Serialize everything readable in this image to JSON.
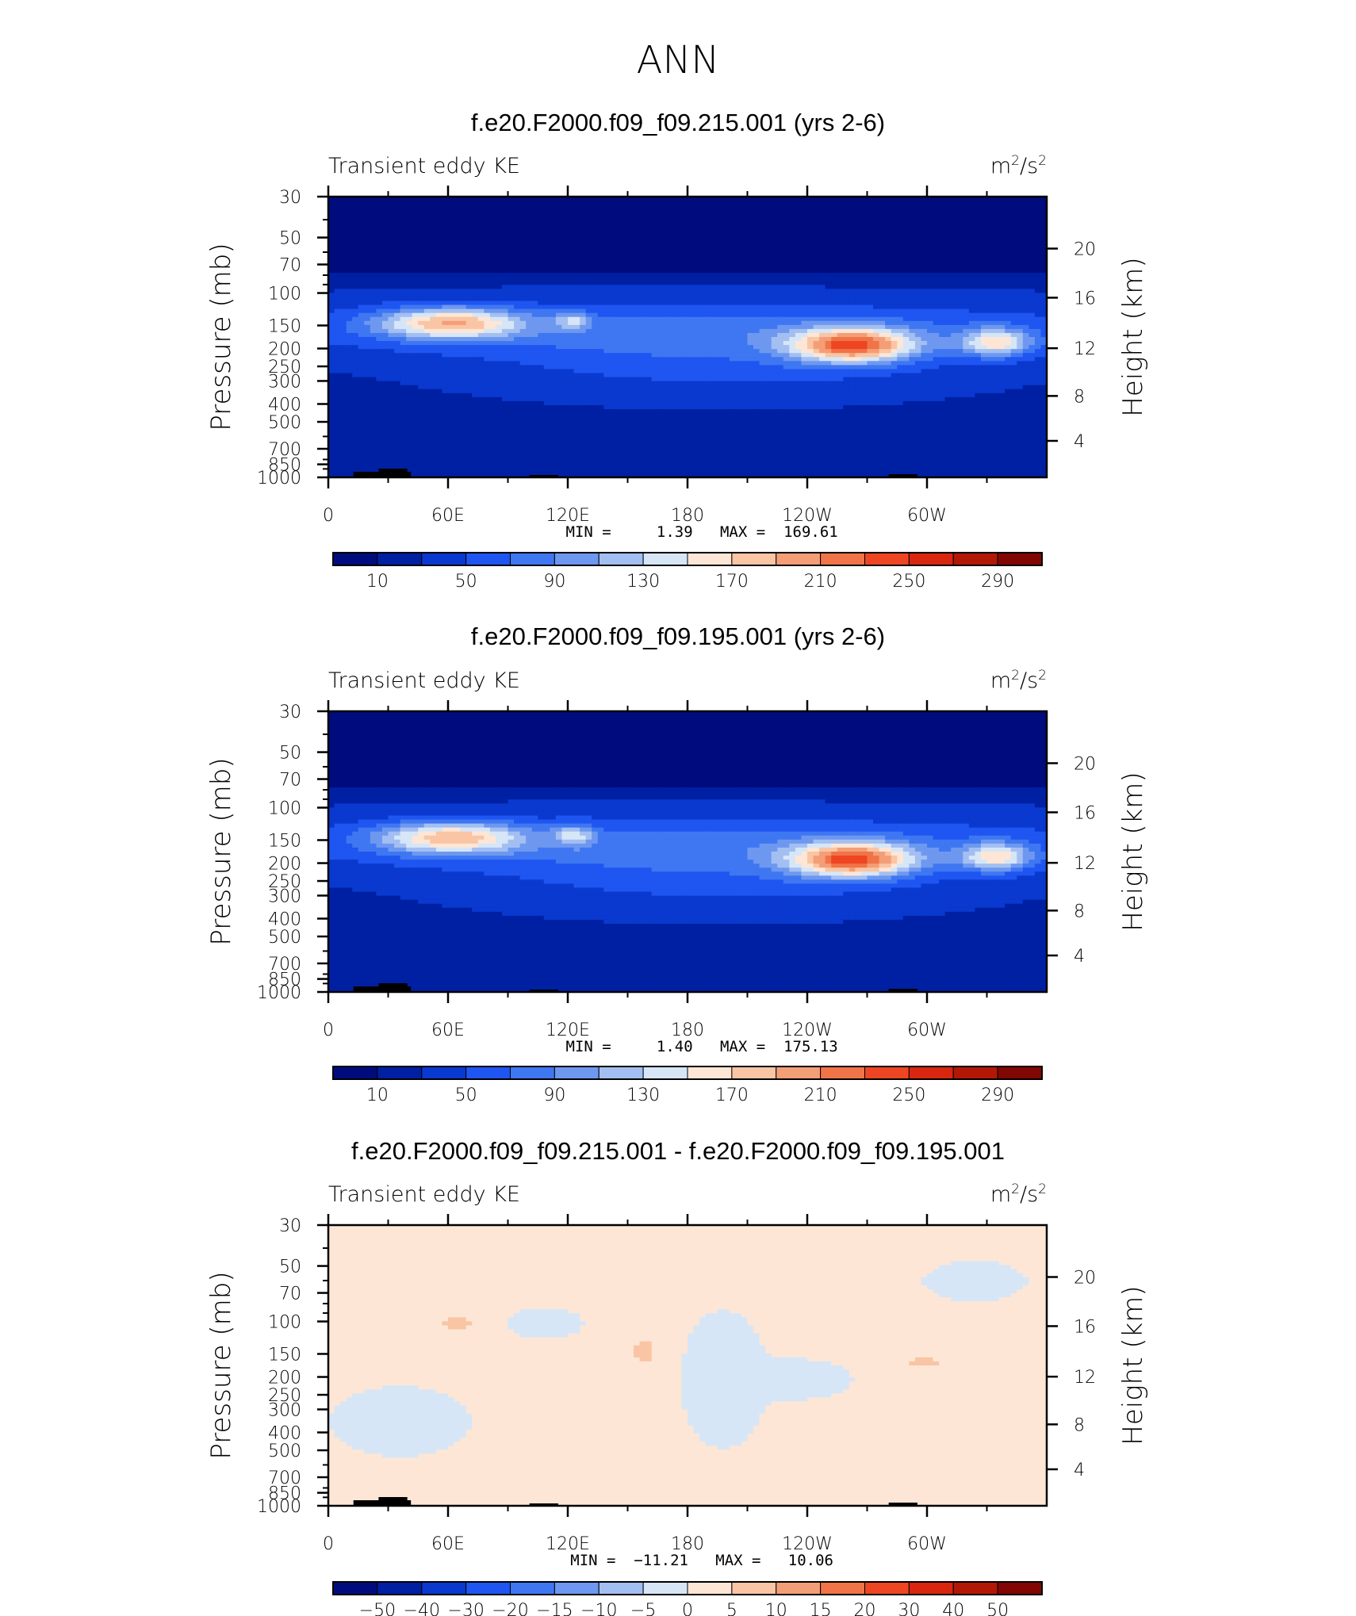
{
  "figure": {
    "title": "ANN"
  },
  "chart_data": [
    {
      "type": "heatmap",
      "title": "f.e20.F2000.f09_f09.215.001 (yrs 2-6)",
      "subtitle_left": "Transient eddy KE",
      "units": "m²/s²",
      "units_base": "m",
      "units_exp": "2",
      "units_mid": "/s",
      "ylabel": "Pressure (mb)",
      "y2label": "Height (km)",
      "xticks": [
        "0",
        "60E",
        "120E",
        "180",
        "120W",
        "60W"
      ],
      "yticks": [
        "30",
        "50",
        "70",
        "100",
        "150",
        "200",
        "250",
        "300",
        "400",
        "500",
        "700",
        "850",
        "1000"
      ],
      "y2ticks": [
        "20",
        "16",
        "12",
        "8",
        "4"
      ],
      "stats": "MIN =     1.39   MAX =  169.61",
      "min": 1.39,
      "max": 169.61,
      "colorbar_labels": [
        "10",
        "50",
        "90",
        "130",
        "170",
        "210",
        "250",
        "290"
      ],
      "colorbar_colors": [
        "#000c7d",
        "#0020a3",
        "#0a39cf",
        "#1f55f0",
        "#3f77f2",
        "#6e98f0",
        "#a3bff2",
        "#d6e6f7",
        "#fde6d6",
        "#f9c5a4",
        "#f49e77",
        "#f07447",
        "#ee4523",
        "#d9260f",
        "#b31807",
        "#820702"
      ],
      "field": "tke_a"
    },
    {
      "type": "heatmap",
      "title": "f.e20.F2000.f09_f09.195.001 (yrs 2-6)",
      "subtitle_left": "Transient eddy KE",
      "units": "m²/s²",
      "units_base": "m",
      "units_exp": "2",
      "units_mid": "/s",
      "ylabel": "Pressure (mb)",
      "y2label": "Height (km)",
      "xticks": [
        "0",
        "60E",
        "120E",
        "180",
        "120W",
        "60W"
      ],
      "yticks": [
        "30",
        "50",
        "70",
        "100",
        "150",
        "200",
        "250",
        "300",
        "400",
        "500",
        "700",
        "850",
        "1000"
      ],
      "y2ticks": [
        "20",
        "16",
        "12",
        "8",
        "4"
      ],
      "stats": "MIN =     1.40   MAX =  175.13",
      "min": 1.4,
      "max": 175.13,
      "colorbar_labels": [
        "10",
        "50",
        "90",
        "130",
        "170",
        "210",
        "250",
        "290"
      ],
      "colorbar_colors": [
        "#000c7d",
        "#0020a3",
        "#0a39cf",
        "#1f55f0",
        "#3f77f2",
        "#6e98f0",
        "#a3bff2",
        "#d6e6f7",
        "#fde6d6",
        "#f9c5a4",
        "#f49e77",
        "#f07447",
        "#ee4523",
        "#d9260f",
        "#b31807",
        "#820702"
      ],
      "field": "tke_b"
    },
    {
      "type": "heatmap",
      "title": "f.e20.F2000.f09_f09.215.001 - f.e20.F2000.f09_f09.195.001",
      "subtitle_left": "Transient eddy KE",
      "units": "m²/s²",
      "units_base": "m",
      "units_exp": "2",
      "units_mid": "/s",
      "ylabel": "Pressure (mb)",
      "y2label": "Height (km)",
      "xticks": [
        "0",
        "60E",
        "120E",
        "180",
        "120W",
        "60W"
      ],
      "yticks": [
        "30",
        "50",
        "70",
        "100",
        "150",
        "200",
        "250",
        "300",
        "400",
        "500",
        "700",
        "850",
        "1000"
      ],
      "y2ticks": [
        "20",
        "16",
        "12",
        "8",
        "4"
      ],
      "stats": "MIN =  −11.21   MAX =   10.06",
      "min": -11.21,
      "max": 10.06,
      "colorbar_labels": [
        "−50",
        "−40",
        "−30",
        "−20",
        "−15",
        "−10",
        "−5",
        "0",
        "5",
        "10",
        "15",
        "20",
        "30",
        "40",
        "50"
      ],
      "colorbar_colors": [
        "#000c7d",
        "#0020a3",
        "#0a39cf",
        "#1f55f0",
        "#3f77f2",
        "#6e98f0",
        "#a3bff2",
        "#d6e6f7",
        "#fde6d6",
        "#f9c5a4",
        "#f49e77",
        "#f07447",
        "#ee4523",
        "#d9260f",
        "#b31807",
        "#820702"
      ],
      "field": "diff"
    }
  ]
}
